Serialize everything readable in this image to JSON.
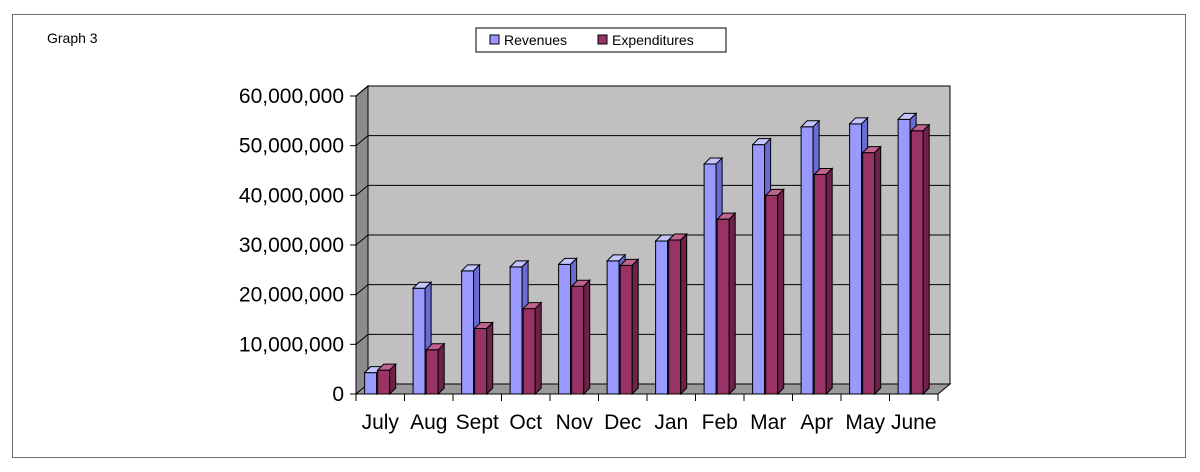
{
  "page_label": "Graph 3",
  "colors": {
    "revenues_front": "#9999ff",
    "revenues_top": "#c4c4ff",
    "revenues_side": "#6b6bd6",
    "expenditures_front": "#993366",
    "expenditures_top": "#c0648f",
    "expenditures_side": "#6e2149",
    "wall": "#c0c0c0",
    "floor": "#9a9a9a",
    "gridline": "#000000"
  },
  "chart_data": {
    "type": "bar",
    "categories": [
      "July",
      "Aug",
      "Sept",
      "Oct",
      "Nov",
      "Dec",
      "Jan",
      "Feb",
      "Mar",
      "Apr",
      "May",
      "June"
    ],
    "series": [
      {
        "name": "Revenues",
        "values": [
          4300000,
          21300000,
          24800000,
          25600000,
          26100000,
          26800000,
          30800000,
          46300000,
          50200000,
          53800000,
          54400000,
          55300000
        ]
      },
      {
        "name": "Expenditures",
        "values": [
          4800000,
          8900000,
          13200000,
          17200000,
          21700000,
          25900000,
          31000000,
          35200000,
          40000000,
          44200000,
          48600000,
          53000000
        ]
      }
    ],
    "y_ticks": [
      "0",
      "10,000,000",
      "20,000,000",
      "30,000,000",
      "40,000,000",
      "50,000,000",
      "60,000,000"
    ],
    "ylim": [
      0,
      60000000
    ],
    "grid": true,
    "legend_position": "top-center"
  }
}
